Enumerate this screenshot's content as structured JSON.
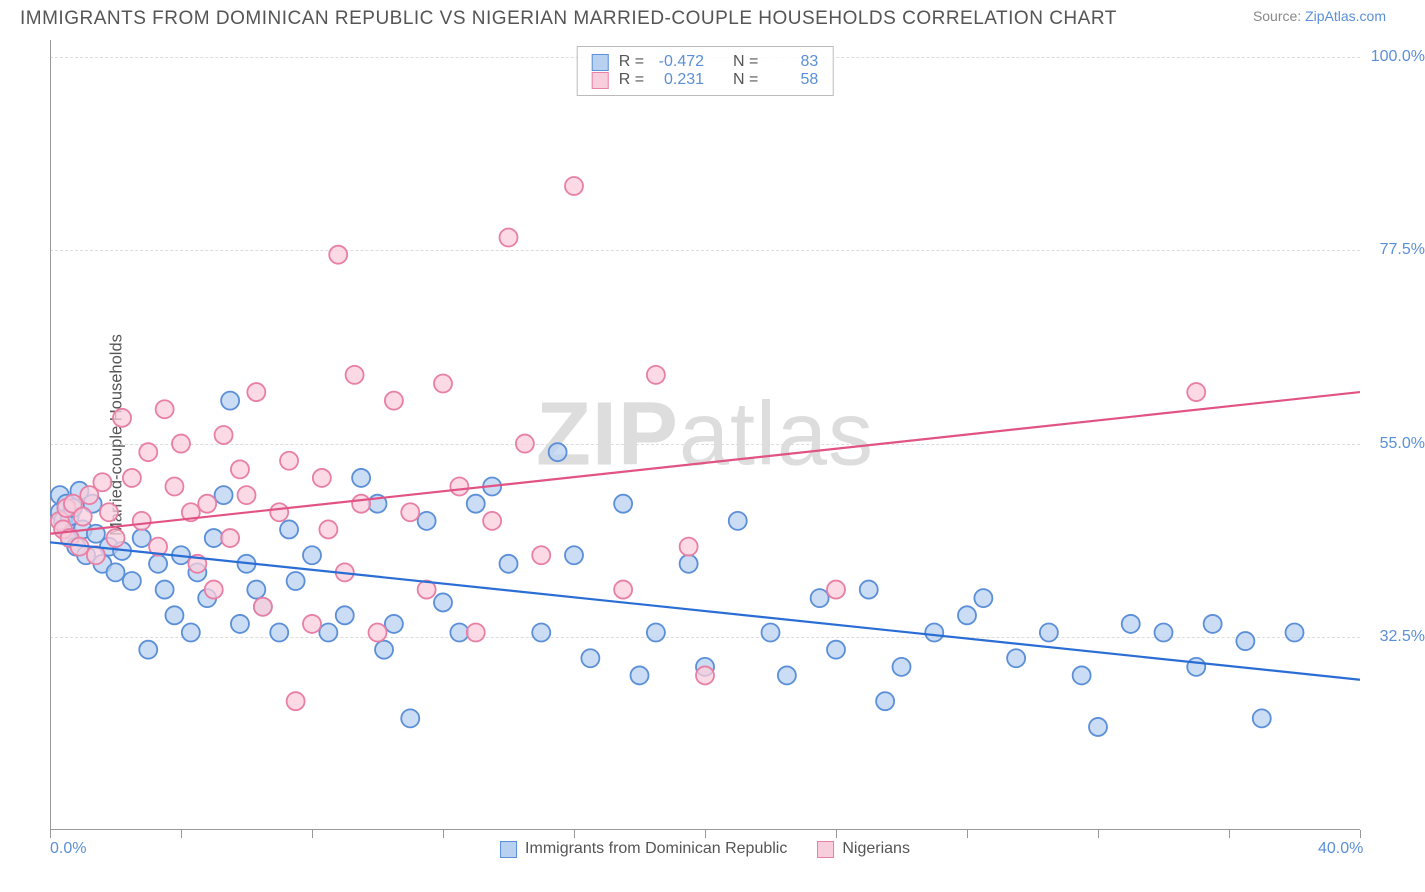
{
  "title": "IMMIGRANTS FROM DOMINICAN REPUBLIC VS NIGERIAN MARRIED-COUPLE HOUSEHOLDS CORRELATION CHART",
  "source_prefix": "Source: ",
  "source_link": "ZipAtlas.com",
  "watermark_bold": "ZIP",
  "watermark_light": "atlas",
  "y_axis_title": "Married-couple Households",
  "chart": {
    "type": "scatter",
    "xlim": [
      0,
      40
    ],
    "ylim": [
      10,
      102
    ],
    "x_ticks": [
      0,
      4,
      8,
      12,
      16,
      20,
      24,
      28,
      32,
      36,
      40
    ],
    "x_tick_labels": {
      "0": "0.0%",
      "40": "40.0%"
    },
    "y_ticks": [
      32.5,
      55.0,
      77.5,
      100.0
    ],
    "y_tick_labels": [
      "32.5%",
      "55.0%",
      "77.5%",
      "100.0%"
    ],
    "background_color": "#ffffff",
    "grid_color": "#dcdcdc",
    "axis_color": "#999999",
    "marker_radius": 9,
    "marker_stroke_width": 1.8,
    "regression_line_width": 2.2
  },
  "series": [
    {
      "name": "Immigrants from Dominican Republic",
      "fill": "#b9d1f0",
      "stroke": "#5b8fd8",
      "r_value": "-0.472",
      "n_value": "83",
      "regression": {
        "x1": 0,
        "y1": 43.5,
        "x2": 40,
        "y2": 27.5,
        "color": "#2a6dd4"
      },
      "points": [
        [
          0.3,
          49
        ],
        [
          0.3,
          47
        ],
        [
          0.4,
          46
        ],
        [
          0.5,
          48
        ],
        [
          0.5,
          45
        ],
        [
          0.6,
          44
        ],
        [
          0.6,
          46.5
        ],
        [
          0.7,
          47.5
        ],
        [
          0.8,
          43
        ],
        [
          0.9,
          49.5
        ],
        [
          1.0,
          45
        ],
        [
          1.1,
          42
        ],
        [
          1.3,
          48
        ],
        [
          1.4,
          44.5
        ],
        [
          1.6,
          41
        ],
        [
          1.8,
          43
        ],
        [
          2.0,
          40
        ],
        [
          2.2,
          42.5
        ],
        [
          2.5,
          39
        ],
        [
          2.8,
          44
        ],
        [
          3.0,
          31
        ],
        [
          3.3,
          41
        ],
        [
          3.5,
          38
        ],
        [
          3.8,
          35
        ],
        [
          4.0,
          42
        ],
        [
          4.3,
          33
        ],
        [
          4.5,
          40
        ],
        [
          4.8,
          37
        ],
        [
          5.0,
          44
        ],
        [
          5.3,
          49
        ],
        [
          5.5,
          60
        ],
        [
          5.8,
          34
        ],
        [
          6.0,
          41
        ],
        [
          6.3,
          38
        ],
        [
          6.5,
          36
        ],
        [
          7.0,
          33
        ],
        [
          7.3,
          45
        ],
        [
          7.5,
          39
        ],
        [
          8.0,
          42
        ],
        [
          8.5,
          33
        ],
        [
          9.0,
          35
        ],
        [
          9.5,
          51
        ],
        [
          10.0,
          48
        ],
        [
          10.2,
          31
        ],
        [
          10.5,
          34
        ],
        [
          11.0,
          23
        ],
        [
          11.5,
          46
        ],
        [
          12.0,
          36.5
        ],
        [
          12.5,
          33
        ],
        [
          13.0,
          48
        ],
        [
          13.5,
          50
        ],
        [
          14.0,
          41
        ],
        [
          15.0,
          33
        ],
        [
          15.5,
          54
        ],
        [
          16.0,
          42
        ],
        [
          16.5,
          30
        ],
        [
          17.5,
          48
        ],
        [
          18.0,
          28
        ],
        [
          18.5,
          33
        ],
        [
          19.5,
          41
        ],
        [
          20.0,
          29
        ],
        [
          21.0,
          46
        ],
        [
          22.0,
          33
        ],
        [
          22.5,
          28
        ],
        [
          23.5,
          37
        ],
        [
          24.0,
          31
        ],
        [
          25.0,
          38
        ],
        [
          25.5,
          25
        ],
        [
          26.0,
          29
        ],
        [
          27.0,
          33
        ],
        [
          28.0,
          35
        ],
        [
          28.5,
          37
        ],
        [
          29.5,
          30
        ],
        [
          30.5,
          33
        ],
        [
          31.5,
          28
        ],
        [
          32.0,
          22
        ],
        [
          33.0,
          34
        ],
        [
          34.0,
          33
        ],
        [
          35.0,
          29
        ],
        [
          35.5,
          34
        ],
        [
          36.5,
          32
        ],
        [
          37.0,
          23
        ],
        [
          38.0,
          33
        ]
      ]
    },
    {
      "name": "Nigerians",
      "fill": "#f9cedc",
      "stroke": "#e87fa5",
      "r_value": "0.231",
      "n_value": "58",
      "regression": {
        "x1": 0,
        "y1": 44.5,
        "x2": 40,
        "y2": 61.0,
        "color": "#e25385"
      },
      "points": [
        [
          0.3,
          46
        ],
        [
          0.4,
          45
        ],
        [
          0.5,
          47.5
        ],
        [
          0.6,
          44
        ],
        [
          0.7,
          48
        ],
        [
          0.9,
          43
        ],
        [
          1.0,
          46.5
        ],
        [
          1.2,
          49
        ],
        [
          1.4,
          42
        ],
        [
          1.6,
          50.5
        ],
        [
          1.8,
          47
        ],
        [
          2.0,
          44
        ],
        [
          2.2,
          58
        ],
        [
          2.5,
          51
        ],
        [
          2.8,
          46
        ],
        [
          3.0,
          54
        ],
        [
          3.3,
          43
        ],
        [
          3.5,
          59
        ],
        [
          3.8,
          50
        ],
        [
          4.0,
          55
        ],
        [
          4.3,
          47
        ],
        [
          4.5,
          41
        ],
        [
          4.8,
          48
        ],
        [
          5.0,
          38
        ],
        [
          5.3,
          56
        ],
        [
          5.5,
          44
        ],
        [
          5.8,
          52
        ],
        [
          6.0,
          49
        ],
        [
          6.3,
          61
        ],
        [
          6.5,
          36
        ],
        [
          7.0,
          47
        ],
        [
          7.3,
          53
        ],
        [
          7.5,
          25
        ],
        [
          8.0,
          34
        ],
        [
          8.3,
          51
        ],
        [
          8.5,
          45
        ],
        [
          8.8,
          77
        ],
        [
          9.0,
          40
        ],
        [
          9.3,
          63
        ],
        [
          9.5,
          48
        ],
        [
          10.0,
          33
        ],
        [
          10.5,
          60
        ],
        [
          11.0,
          47
        ],
        [
          11.5,
          38
        ],
        [
          12.0,
          62
        ],
        [
          12.5,
          50
        ],
        [
          13.0,
          33
        ],
        [
          13.5,
          46
        ],
        [
          14.0,
          79
        ],
        [
          14.5,
          55
        ],
        [
          15.0,
          42
        ],
        [
          16.0,
          85
        ],
        [
          17.5,
          38
        ],
        [
          18.5,
          63
        ],
        [
          19.5,
          43
        ],
        [
          20.0,
          28
        ],
        [
          24.0,
          38
        ],
        [
          35.0,
          61
        ]
      ]
    }
  ],
  "stats_labels": {
    "r": "R =",
    "n": "N ="
  }
}
